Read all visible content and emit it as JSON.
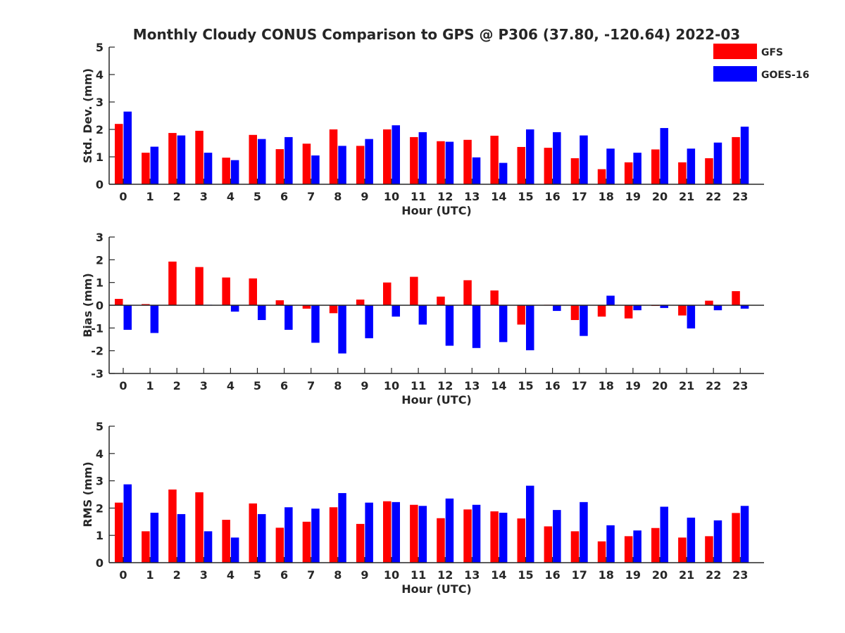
{
  "title": "Monthly Cloudy CONUS Comparison to GPS @ P306 (37.80, -120.64) 2022-03",
  "legend": {
    "placement": "top-right",
    "entries": [
      {
        "label": "GFS",
        "color": "#ff0000"
      },
      {
        "label": "GOES-16",
        "color": "#0000ff"
      }
    ]
  },
  "chart_data": [
    {
      "type": "bar",
      "xlabel": "Hour (UTC)",
      "ylabel": "Std. Dev. (mm)",
      "ylim": [
        0,
        5
      ],
      "yticks": [
        "0",
        "1",
        "2",
        "3",
        "4",
        "5"
      ],
      "categories": [
        "0",
        "1",
        "2",
        "3",
        "4",
        "5",
        "6",
        "7",
        "8",
        "9",
        "10",
        "11",
        "12",
        "13",
        "14",
        "15",
        "16",
        "17",
        "18",
        "19",
        "20",
        "21",
        "22",
        "23"
      ],
      "series": [
        {
          "name": "GFS",
          "color": "#ff0000",
          "values": [
            2.2,
            1.15,
            1.87,
            1.95,
            0.97,
            1.8,
            1.28,
            1.48,
            2.0,
            1.4,
            2.0,
            1.72,
            1.57,
            1.62,
            1.77,
            1.36,
            1.33,
            0.95,
            0.55,
            0.8,
            1.27,
            0.8,
            0.95,
            1.72
          ]
        },
        {
          "name": "GOES-16",
          "color": "#0000ff",
          "values": [
            2.65,
            1.37,
            1.78,
            1.15,
            0.88,
            1.65,
            1.72,
            1.05,
            1.4,
            1.65,
            2.15,
            1.9,
            1.55,
            0.98,
            0.78,
            2.0,
            1.9,
            1.78,
            1.3,
            1.15,
            2.05,
            1.3,
            1.52,
            2.1
          ]
        }
      ]
    },
    {
      "type": "bar",
      "xlabel": "Hour (UTC)",
      "ylabel": "Bias (mm)",
      "ylim": [
        -3,
        3
      ],
      "yticks": [
        "-3",
        "-2",
        "-1",
        "0",
        "1",
        "2",
        "3"
      ],
      "categories": [
        "0",
        "1",
        "2",
        "3",
        "4",
        "5",
        "6",
        "7",
        "8",
        "9",
        "10",
        "11",
        "12",
        "13",
        "14",
        "15",
        "16",
        "17",
        "18",
        "19",
        "20",
        "21",
        "22",
        "23"
      ],
      "series": [
        {
          "name": "GFS",
          "color": "#ff0000",
          "values": [
            0.28,
            0.05,
            1.92,
            1.68,
            1.22,
            1.18,
            0.22,
            -0.15,
            -0.35,
            0.25,
            1.0,
            1.25,
            0.38,
            1.1,
            0.65,
            -0.85,
            0.02,
            -0.65,
            -0.5,
            -0.58,
            -0.03,
            -0.45,
            0.2,
            0.62
          ]
        },
        {
          "name": "GOES-16",
          "color": "#0000ff",
          "values": [
            -1.08,
            -1.22,
            0.0,
            0.02,
            -0.28,
            -0.65,
            -1.08,
            -1.65,
            -2.12,
            -1.45,
            -0.5,
            -0.85,
            -1.78,
            -1.88,
            -1.62,
            -1.98,
            -0.25,
            -1.35,
            0.42,
            -0.22,
            -0.12,
            -1.02,
            -0.22,
            -0.15
          ]
        }
      ]
    },
    {
      "type": "bar",
      "xlabel": "Hour (UTC)",
      "ylabel": "RMS (mm)",
      "ylim": [
        0,
        5
      ],
      "yticks": [
        "0",
        "1",
        "2",
        "3",
        "4",
        "5"
      ],
      "categories": [
        "0",
        "1",
        "2",
        "3",
        "4",
        "5",
        "6",
        "7",
        "8",
        "9",
        "10",
        "11",
        "12",
        "13",
        "14",
        "15",
        "16",
        "17",
        "18",
        "19",
        "20",
        "21",
        "22",
        "23"
      ],
      "series": [
        {
          "name": "GFS",
          "color": "#ff0000",
          "values": [
            2.2,
            1.15,
            2.68,
            2.58,
            1.57,
            2.17,
            1.28,
            1.5,
            2.03,
            1.42,
            2.25,
            2.12,
            1.63,
            1.95,
            1.88,
            1.62,
            1.33,
            1.15,
            0.78,
            0.97,
            1.27,
            0.92,
            0.97,
            1.82
          ]
        },
        {
          "name": "GOES-16",
          "color": "#0000ff",
          "values": [
            2.87,
            1.83,
            1.78,
            1.15,
            0.92,
            1.78,
            2.03,
            1.98,
            2.55,
            2.2,
            2.22,
            2.08,
            2.35,
            2.12,
            1.83,
            2.82,
            1.93,
            2.22,
            1.37,
            1.18,
            2.05,
            1.65,
            1.55,
            2.08
          ]
        }
      ]
    }
  ]
}
